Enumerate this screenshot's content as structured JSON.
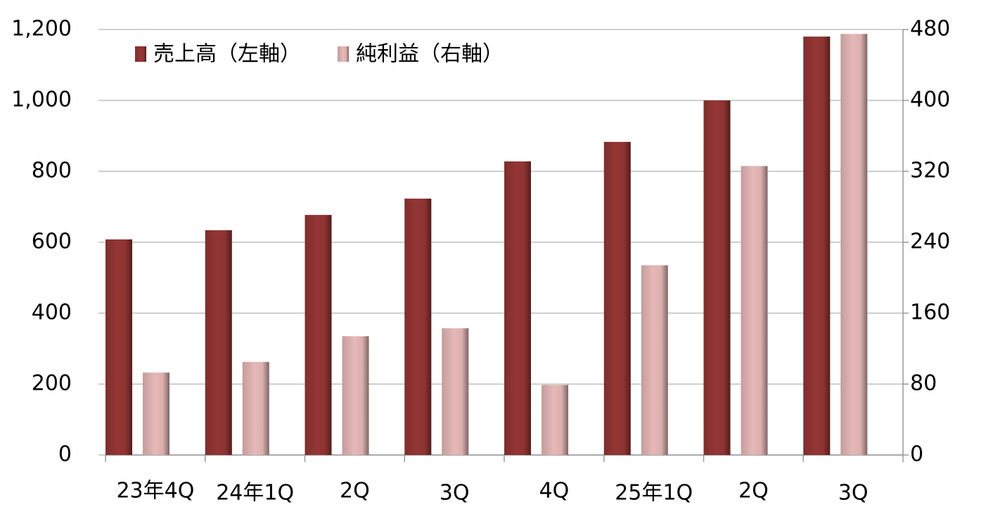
{
  "chart_data": {
    "type": "bar",
    "categories": [
      "23年4Q",
      "24年1Q",
      "2Q",
      "3Q",
      "4Q",
      "25年1Q",
      "2Q",
      "3Q"
    ],
    "series": [
      {
        "name": "売上高（左軸）",
        "color": "#943634",
        "values": [
          608,
          634,
          677,
          723,
          828,
          883,
          1000,
          1180
        ]
      },
      {
        "name": "純利益（右軸）",
        "color": "#e6b8b7",
        "axis": "y2",
        "values": [
          93,
          105,
          134,
          143,
          79,
          214,
          326,
          475
        ]
      }
    ],
    "ylim": [
      0,
      1200
    ],
    "yticks": [
      0,
      200,
      400,
      600,
      800,
      {
        "value": 1000,
        "label": "1,000"
      },
      {
        "value": 1200,
        "label": "1,200"
      }
    ],
    "y2lim": [
      0,
      480
    ],
    "y2ticks": [
      0,
      80,
      160,
      240,
      320,
      400,
      480
    ],
    "grid": true
  }
}
